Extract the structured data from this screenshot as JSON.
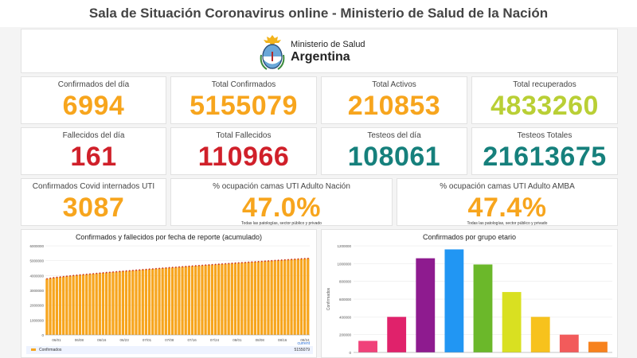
{
  "header": {
    "title": "Sala de Situación Coronavirus online - Ministerio de Salud de la Nación"
  },
  "logo": {
    "line1": "Ministerio de Salud",
    "line2": "Argentina"
  },
  "stats_row1": [
    {
      "label": "Confirmados del día",
      "value": "6994",
      "color": "#f7a51d"
    },
    {
      "label": "Total Confirmados",
      "value": "5155079",
      "color": "#f7a51d"
    },
    {
      "label": "Total Activos",
      "value": "210853",
      "color": "#f7a51d"
    },
    {
      "label": "Total recuperados",
      "value": "4833260",
      "color": "#b9cf35"
    }
  ],
  "stats_row2": [
    {
      "label": "Fallecidos del día",
      "value": "161",
      "color": "#d0202a"
    },
    {
      "label": "Total Fallecidos",
      "value": "110966",
      "color": "#d0202a"
    },
    {
      "label": "Testeos del día",
      "value": "108061",
      "color": "#16807c"
    },
    {
      "label": "Testeos Totales",
      "value": "21613675",
      "color": "#16807c"
    }
  ],
  "stats_row3": [
    {
      "label": "Confirmados Covid internados UTI",
      "value": "3087",
      "color": "#f7a51d"
    },
    {
      "label": "% ocupación camas UTI Adulto Nación",
      "value": "47.0%",
      "note": "Todas las patologías, sector público y privado",
      "color": "#f7a51d"
    },
    {
      "label": "% ocupación camas UTI Adulto AMBA",
      "value": "47.4%",
      "note": "Todas las patologías, sector público y privado",
      "color": "#f7a51d"
    }
  ],
  "legend": {
    "label": "Confirmados",
    "value": "5155079",
    "current": "current"
  },
  "chart_data": [
    {
      "type": "bar",
      "title": "Confirmados y fallecidos por fecha de reporte (acumulado)",
      "x_ticks": [
        "06/01",
        "06/08",
        "06/16",
        "06/23",
        "07/01",
        "07/08",
        "07/16",
        "07/24",
        "08/01",
        "08/08",
        "08/16",
        "08/24"
      ],
      "y_ticks": [
        "0",
        "1000000",
        "2000000",
        "3000000",
        "4000000",
        "5000000",
        "6000000"
      ],
      "ylim": [
        0,
        6000000
      ],
      "series": [
        {
          "name": "Confirmados",
          "start": 3780000,
          "end": 5155079,
          "count": 80,
          "color": "#f7a51d"
        }
      ],
      "grid": true
    },
    {
      "type": "bar",
      "title": "Confirmados por grupo etario",
      "y_ticks": [
        "0",
        "200000",
        "400000",
        "600000",
        "800000",
        "1000000",
        "1200000"
      ],
      "ylabel": "Confirmados",
      "ylim": [
        0,
        1200000
      ],
      "values": [
        130000,
        400000,
        1060000,
        1160000,
        990000,
        680000,
        400000,
        200000,
        120000
      ],
      "colors": [
        "#f0427a",
        "#e0226b",
        "#8e1b8f",
        "#2196f3",
        "#6bb82a",
        "#d9e021",
        "#f7c21d",
        "#f25b5b",
        "#f7821d"
      ],
      "grid": true
    }
  ]
}
